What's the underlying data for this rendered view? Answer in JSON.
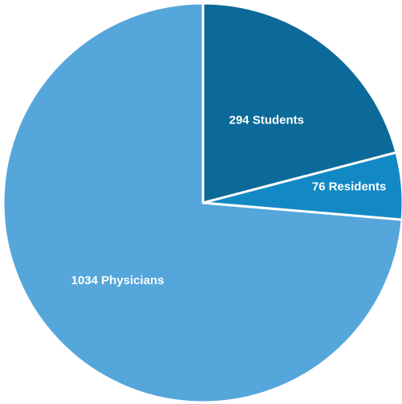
{
  "chart_data": {
    "type": "pie",
    "slices": [
      {
        "label": "294 Students",
        "value": 294,
        "color": "#0b6a99"
      },
      {
        "label": "76 Residents",
        "value": 76,
        "color": "#1289c5"
      },
      {
        "label": "1034 Physicians",
        "value": 1034,
        "color": "#55a6da"
      }
    ],
    "start_direction": "12 o'clock",
    "direction": "clockwise",
    "legend": "none",
    "label_color": "#ffffff",
    "slice_border_color": "#ffffff"
  }
}
